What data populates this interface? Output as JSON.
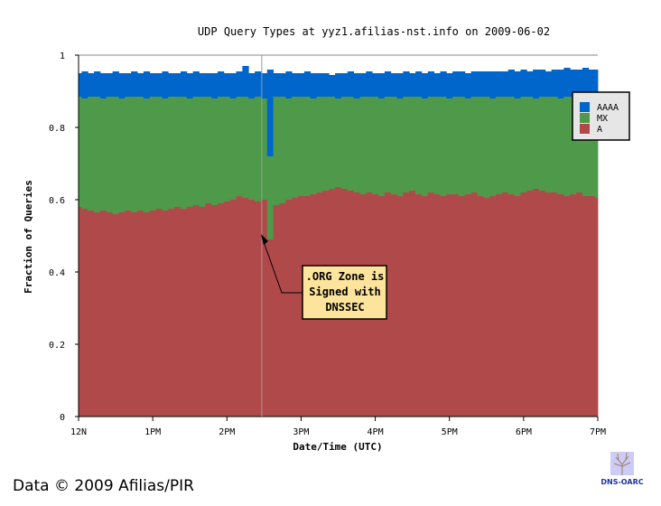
{
  "chart_data": {
    "type": "area",
    "stacked": true,
    "title": "UDP Query Types at yyz1.afilias-nst.info on 2009-06-02",
    "xlabel": "Date/Time (UTC)",
    "ylabel": "Fraction of Queries",
    "xlim_hours": [
      12,
      19
    ],
    "ylim": [
      0,
      1
    ],
    "interval_minutes": 5,
    "xticks": [
      "12N",
      "1PM",
      "2PM",
      "3PM",
      "4PM",
      "5PM",
      "6PM",
      "7PM"
    ],
    "yticks": [
      "0",
      "0.2",
      "0.4",
      "0.6",
      "0.8",
      "1"
    ],
    "legend": {
      "placement": "right",
      "entries": [
        "AAAA",
        "MX",
        "A"
      ]
    },
    "colors": {
      "A": "#b04a4a",
      "MX": "#4e9a4a",
      "AAAA": "#0066cc"
    },
    "series": [
      {
        "name": "A",
        "cumulative": [
          0.58,
          0.575,
          0.57,
          0.565,
          0.57,
          0.565,
          0.56,
          0.565,
          0.57,
          0.565,
          0.57,
          0.565,
          0.57,
          0.575,
          0.57,
          0.575,
          0.58,
          0.575,
          0.58,
          0.585,
          0.58,
          0.59,
          0.585,
          0.59,
          0.595,
          0.6,
          0.61,
          0.605,
          0.6,
          0.595,
          0.6,
          0.49,
          0.585,
          0.59,
          0.6,
          0.605,
          0.61,
          0.61,
          0.615,
          0.62,
          0.625,
          0.63,
          0.635,
          0.63,
          0.625,
          0.62,
          0.615,
          0.62,
          0.615,
          0.61,
          0.62,
          0.615,
          0.61,
          0.62,
          0.625,
          0.615,
          0.61,
          0.62,
          0.615,
          0.61,
          0.615,
          0.615,
          0.61,
          0.615,
          0.62,
          0.61,
          0.605,
          0.61,
          0.615,
          0.62,
          0.615,
          0.61,
          0.62,
          0.625,
          0.63,
          0.625,
          0.62,
          0.62,
          0.615,
          0.61,
          0.615,
          0.62,
          0.61,
          0.61,
          0.605
        ]
      },
      {
        "name": "MX",
        "cumulative": [
          0.885,
          0.88,
          0.885,
          0.885,
          0.88,
          0.885,
          0.885,
          0.88,
          0.885,
          0.885,
          0.885,
          0.88,
          0.885,
          0.885,
          0.88,
          0.885,
          0.885,
          0.885,
          0.88,
          0.885,
          0.885,
          0.885,
          0.88,
          0.885,
          0.885,
          0.88,
          0.885,
          0.885,
          0.88,
          0.885,
          0.88,
          0.72,
          0.885,
          0.885,
          0.88,
          0.885,
          0.885,
          0.885,
          0.88,
          0.885,
          0.885,
          0.885,
          0.88,
          0.885,
          0.885,
          0.88,
          0.885,
          0.885,
          0.885,
          0.88,
          0.885,
          0.885,
          0.88,
          0.885,
          0.885,
          0.885,
          0.88,
          0.885,
          0.885,
          0.885,
          0.88,
          0.885,
          0.885,
          0.88,
          0.885,
          0.885,
          0.885,
          0.88,
          0.885,
          0.885,
          0.885,
          0.88,
          0.885,
          0.885,
          0.88,
          0.885,
          0.885,
          0.885,
          0.88,
          0.885,
          0.885,
          0.88,
          0.885,
          0.885,
          0.885
        ]
      },
      {
        "name": "AAAA",
        "cumulative": [
          0.95,
          0.955,
          0.95,
          0.955,
          0.95,
          0.95,
          0.955,
          0.95,
          0.95,
          0.955,
          0.95,
          0.955,
          0.95,
          0.95,
          0.955,
          0.95,
          0.95,
          0.955,
          0.95,
          0.955,
          0.95,
          0.95,
          0.95,
          0.955,
          0.95,
          0.95,
          0.955,
          0.97,
          0.95,
          0.955,
          0.95,
          0.96,
          0.95,
          0.95,
          0.955,
          0.95,
          0.95,
          0.955,
          0.95,
          0.95,
          0.95,
          0.945,
          0.95,
          0.95,
          0.955,
          0.95,
          0.95,
          0.955,
          0.95,
          0.95,
          0.955,
          0.95,
          0.95,
          0.955,
          0.95,
          0.955,
          0.95,
          0.955,
          0.95,
          0.955,
          0.95,
          0.955,
          0.955,
          0.95,
          0.955,
          0.955,
          0.955,
          0.955,
          0.955,
          0.955,
          0.96,
          0.955,
          0.96,
          0.955,
          0.96,
          0.96,
          0.955,
          0.96,
          0.96,
          0.965,
          0.96,
          0.96,
          0.965,
          0.96,
          0.96
        ]
      }
    ],
    "annotation": {
      "text_lines": [
        ".ORG Zone is",
        "Signed with",
        "DNSSEC"
      ],
      "hour": 14.47
    }
  },
  "footer": {
    "credit": "Data © 2009 Afilias/PIR",
    "logo_text": "DNS-OARC"
  }
}
